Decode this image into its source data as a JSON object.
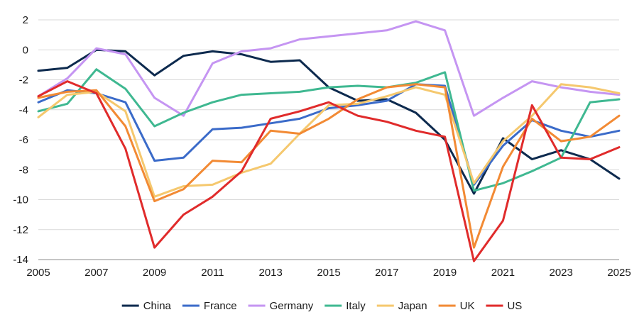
{
  "chart_data": {
    "type": "line",
    "title": "",
    "xlabel": "",
    "ylabel": "",
    "xlim": [
      2005,
      2025
    ],
    "ylim": [
      -14,
      2
    ],
    "x_ticks": [
      2005,
      2007,
      2009,
      2011,
      2013,
      2015,
      2017,
      2019,
      2021,
      2023,
      2025
    ],
    "y_ticks": [
      2,
      0,
      -2,
      -4,
      -6,
      -8,
      -10,
      -12,
      -14
    ],
    "grid": "horizontal",
    "legend_position": "bottom",
    "x": [
      2005,
      2006,
      2007,
      2008,
      2009,
      2010,
      2011,
      2012,
      2013,
      2014,
      2015,
      2016,
      2017,
      2018,
      2019,
      2020,
      2021,
      2022,
      2023,
      2024,
      2025
    ],
    "series": [
      {
        "name": "China",
        "color": "#0d2a4e",
        "values": [
          -1.4,
          -1.2,
          0.0,
          -0.1,
          -1.7,
          -0.4,
          -0.1,
          -0.3,
          -0.8,
          -0.7,
          -2.5,
          -3.4,
          -3.3,
          -4.2,
          -6.0,
          -9.6,
          -5.9,
          -7.3,
          -6.7,
          -7.3,
          -8.6
        ]
      },
      {
        "name": "France",
        "color": "#3b6bc9",
        "values": [
          -3.5,
          -2.7,
          -2.9,
          -3.5,
          -7.4,
          -7.2,
          -5.3,
          -5.2,
          -4.9,
          -4.6,
          -3.9,
          -3.7,
          -3.4,
          -2.3,
          -2.4,
          -9.0,
          -6.4,
          -4.7,
          -5.4,
          -5.8,
          -5.4
        ]
      },
      {
        "name": "Germany",
        "color": "#c595f2",
        "values": [
          -3.1,
          -1.9,
          0.1,
          -0.3,
          -3.2,
          -4.4,
          -0.9,
          -0.1,
          0.1,
          0.7,
          0.9,
          1.1,
          1.3,
          1.9,
          1.3,
          -4.4,
          -3.2,
          -2.1,
          -2.5,
          -2.8,
          -3.0
        ]
      },
      {
        "name": "Italy",
        "color": "#3fb891",
        "values": [
          -4.1,
          -3.6,
          -1.3,
          -2.6,
          -5.1,
          -4.2,
          -3.5,
          -3.0,
          -2.9,
          -2.8,
          -2.5,
          -2.4,
          -2.5,
          -2.2,
          -1.5,
          -9.4,
          -8.9,
          -8.1,
          -7.2,
          -3.5,
          -3.3
        ]
      },
      {
        "name": "Japan",
        "color": "#f5c86e",
        "values": [
          -4.5,
          -3.0,
          -2.8,
          -4.1,
          -9.8,
          -9.1,
          -9.0,
          -8.2,
          -7.6,
          -5.6,
          -3.7,
          -3.6,
          -3.1,
          -2.5,
          -3.0,
          -8.9,
          -6.1,
          -4.4,
          -2.3,
          -2.5,
          -2.9
        ]
      },
      {
        "name": "UK",
        "color": "#f28a34",
        "values": [
          -3.2,
          -2.8,
          -2.7,
          -5.1,
          -10.1,
          -9.3,
          -7.4,
          -7.5,
          -5.4,
          -5.6,
          -4.6,
          -3.3,
          -2.5,
          -2.3,
          -2.5,
          -13.2,
          -7.8,
          -4.6,
          -6.1,
          -5.8,
          -4.4
        ]
      },
      {
        "name": "US",
        "color": "#e02b2b",
        "values": [
          -3.1,
          -2.1,
          -2.9,
          -6.6,
          -13.2,
          -11.0,
          -9.8,
          -8.1,
          -4.6,
          -4.1,
          -3.5,
          -4.4,
          -4.8,
          -5.4,
          -5.8,
          -14.1,
          -11.4,
          -3.7,
          -7.2,
          -7.3,
          -6.5
        ]
      }
    ]
  }
}
